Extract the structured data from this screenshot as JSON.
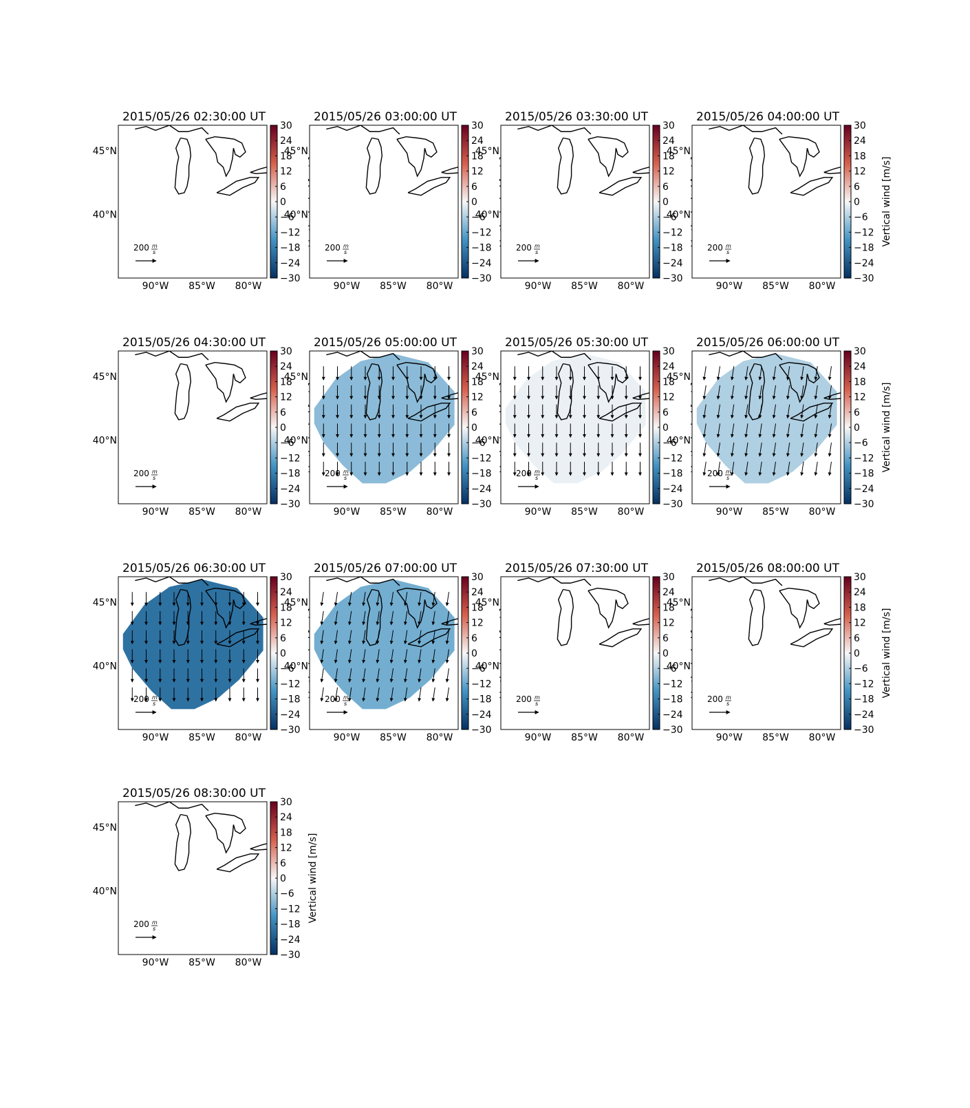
{
  "figure": {
    "colorbar_ticks": [
      "30",
      "24",
      "18",
      "12",
      "6",
      "0",
      "−6",
      "−12",
      "−18",
      "−24",
      "−30"
    ],
    "colorbar_label": "Vertical wind [m/s]",
    "x_tick_labels": [
      "90°W",
      "85°W",
      "80°W"
    ],
    "y_tick_labels": [
      "45°N",
      "40°N"
    ],
    "reference_arrow_label": "200",
    "reference_arrow_unit_num": "m",
    "reference_arrow_unit_den": "s",
    "colors": {
      "cmap_top": "#67001f",
      "cmap_upper": "#d6604d",
      "cmap_mid": "#f7f7f7",
      "cmap_lower": "#4393c3",
      "cmap_bottom": "#053061"
    }
  },
  "chart_data": [
    {
      "type": "heatmap",
      "title": "2015/05/26 02:30:00 UT",
      "vertical_wind": null,
      "wind_field": false,
      "xlim": [
        "94°W",
        "78°W"
      ],
      "ylim": [
        "35°N",
        "47°N"
      ],
      "clim": [
        -30,
        30
      ]
    },
    {
      "type": "heatmap",
      "title": "2015/05/26 03:00:00 UT",
      "vertical_wind": null,
      "wind_field": false,
      "xlim": [
        "94°W",
        "78°W"
      ],
      "ylim": [
        "35°N",
        "47°N"
      ],
      "clim": [
        -30,
        30
      ]
    },
    {
      "type": "heatmap",
      "title": "2015/05/26 03:30:00 UT",
      "vertical_wind": null,
      "wind_field": false,
      "xlim": [
        "94°W",
        "78°W"
      ],
      "ylim": [
        "35°N",
        "47°N"
      ],
      "clim": [
        -30,
        30
      ]
    },
    {
      "type": "heatmap",
      "title": "2015/05/26 04:00:00 UT",
      "vertical_wind": null,
      "wind_field": false,
      "xlim": [
        "94°W",
        "78°W"
      ],
      "ylim": [
        "35°N",
        "47°N"
      ],
      "clim": [
        -30,
        30
      ]
    },
    {
      "type": "heatmap",
      "title": "2015/05/26 04:30:00 UT",
      "vertical_wind": null,
      "wind_field": false,
      "xlim": [
        "94°W",
        "78°W"
      ],
      "ylim": [
        "35°N",
        "47°N"
      ],
      "clim": [
        -30,
        30
      ]
    },
    {
      "type": "heatmap",
      "title": "2015/05/26 05:00:00 UT",
      "vertical_wind": -9,
      "wind_field": true,
      "wind_direction": "south",
      "xlim": [
        "94°W",
        "78°W"
      ],
      "ylim": [
        "35°N",
        "47°N"
      ],
      "clim": [
        -30,
        30
      ]
    },
    {
      "type": "heatmap",
      "title": "2015/05/26 05:30:00 UT",
      "vertical_wind": -1,
      "wind_field": true,
      "wind_direction": "south",
      "xlim": [
        "94°W",
        "78°W"
      ],
      "ylim": [
        "35°N",
        "47°N"
      ],
      "clim": [
        -30,
        30
      ]
    },
    {
      "type": "heatmap",
      "title": "2015/05/26 06:00:00 UT",
      "vertical_wind": -6,
      "wind_field": true,
      "wind_direction": "south-southwest",
      "xlim": [
        "94°W",
        "78°W"
      ],
      "ylim": [
        "35°N",
        "47°N"
      ],
      "clim": [
        -30,
        30
      ]
    },
    {
      "type": "heatmap",
      "title": "2015/05/26 06:30:00 UT",
      "vertical_wind": -20,
      "wind_field": true,
      "wind_direction": "south",
      "xlim": [
        "94°W",
        "78°W"
      ],
      "ylim": [
        "35°N",
        "47°N"
      ],
      "clim": [
        -30,
        30
      ]
    },
    {
      "type": "heatmap",
      "title": "2015/05/26 07:00:00 UT",
      "vertical_wind": -11,
      "wind_field": true,
      "wind_direction": "south-southwest",
      "xlim": [
        "94°W",
        "78°W"
      ],
      "ylim": [
        "35°N",
        "47°N"
      ],
      "clim": [
        -30,
        30
      ]
    },
    {
      "type": "heatmap",
      "title": "2015/05/26 07:30:00 UT",
      "vertical_wind": null,
      "wind_field": false,
      "xlim": [
        "94°W",
        "78°W"
      ],
      "ylim": [
        "35°N",
        "47°N"
      ],
      "clim": [
        -30,
        30
      ]
    },
    {
      "type": "heatmap",
      "title": "2015/05/26 08:00:00 UT",
      "vertical_wind": null,
      "wind_field": false,
      "xlim": [
        "94°W",
        "78°W"
      ],
      "ylim": [
        "35°N",
        "47°N"
      ],
      "clim": [
        -30,
        30
      ]
    },
    {
      "type": "heatmap",
      "title": "2015/05/26 08:30:00 UT",
      "vertical_wind": null,
      "wind_field": false,
      "xlim": [
        "94°W",
        "78°W"
      ],
      "ylim": [
        "35°N",
        "47°N"
      ],
      "clim": [
        -30,
        30
      ]
    }
  ]
}
